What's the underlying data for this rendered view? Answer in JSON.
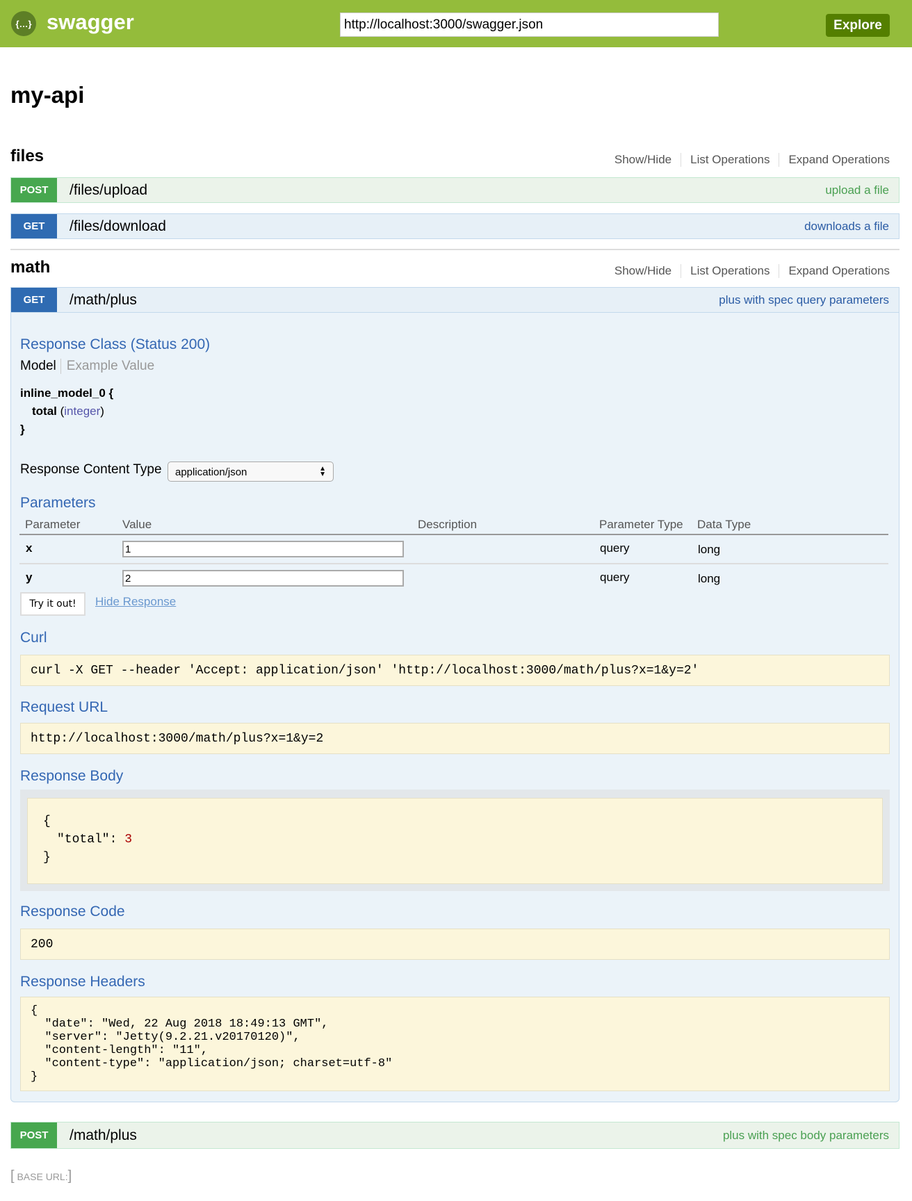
{
  "header": {
    "brand": "swagger",
    "logo_icon": "swagger-logo-icon",
    "url": "http://localhost:3000/swagger.json",
    "explore_label": "Explore"
  },
  "api_title": "my-api",
  "ops_links": {
    "show_hide": "Show/Hide",
    "list": "List Operations",
    "expand": "Expand Operations"
  },
  "sections": [
    {
      "name": "files",
      "operations": [
        {
          "method": "POST",
          "path": "/files/upload",
          "summary": "upload a file"
        },
        {
          "method": "GET",
          "path": "/files/download",
          "summary": "downloads a file"
        }
      ]
    },
    {
      "name": "math",
      "operations": [
        {
          "method": "GET",
          "path": "/math/plus",
          "summary": "plus with spec query parameters"
        },
        {
          "method": "POST",
          "path": "/math/plus",
          "summary": "plus with spec body parameters"
        }
      ]
    }
  ],
  "expanded": {
    "response_class": "Response Class (Status 200)",
    "model_tab": "Model",
    "example_tab": "Example Value",
    "model": {
      "name": "inline_model_0 {",
      "field": "total",
      "type": "integer",
      "close": "}"
    },
    "content_type_label": "Response Content Type",
    "content_type_value": "application/json",
    "parameters_title": "Parameters",
    "columns": [
      "Parameter",
      "Value",
      "Description",
      "Parameter Type",
      "Data Type"
    ],
    "params": [
      {
        "name": "x",
        "value": "1",
        "description": "",
        "ptype": "query",
        "dtype": "long"
      },
      {
        "name": "y",
        "value": "2",
        "description": "",
        "ptype": "query",
        "dtype": "long"
      }
    ],
    "try_label": "Try it out!",
    "hide_label": "Hide Response",
    "curl_title": "Curl",
    "curl": "curl -X GET --header 'Accept: application/json' 'http://localhost:3000/math/plus?x=1&y=2'",
    "request_url_title": "Request URL",
    "request_url": "http://localhost:3000/math/plus?x=1&y=2",
    "response_body_title": "Response Body",
    "response_body": {
      "open": "{",
      "key": "\"total\": ",
      "value": "3",
      "close": "}"
    },
    "response_code_title": "Response Code",
    "response_code": "200",
    "response_headers_title": "Response Headers",
    "response_headers": [
      "{",
      "  \"date\": \"Wed, 22 Aug 2018 18:49:13 GMT\",",
      "  \"server\": \"Jetty(9.2.21.v20170120)\",",
      "  \"content-length\": \"11\",",
      "  \"content-type\": \"application/json; charset=utf-8\"",
      "}"
    ]
  },
  "footer": {
    "base_url": "BASE URL: "
  }
}
